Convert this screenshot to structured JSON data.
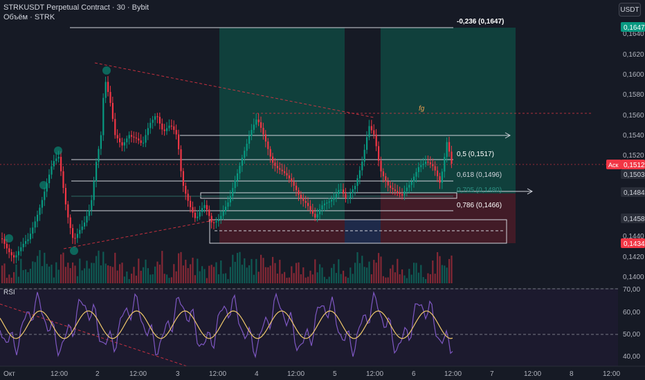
{
  "header": {
    "title": "STRKUSDT Perpetual Contract · 30 · Bybit",
    "volume_label": "Объём · STRK"
  },
  "currency_button": "USDT",
  "rsi_label": "RSI",
  "fib_labels": {
    "top": "-0,236 (0,1647)",
    "half": "0,5 (0,1517)",
    "f618": "0,618 (0,1496)",
    "f705": "0,705 (0,1480)",
    "f786": "0,786 (0,1466)"
  },
  "annotation_fg": "fg",
  "price_axis": [
    "0,1640",
    "0,1620",
    "0,1600",
    "0,1580",
    "0,1560",
    "0,1540",
    "0,1520",
    "0,1484",
    "0,1458",
    "0,1440",
    "0,1420",
    "0,1400"
  ],
  "price_badges": {
    "top": {
      "text": "0,1647",
      "color": "#089981"
    },
    "ask_label": "Аск",
    "ask": {
      "text": "0,1512",
      "color": "#f23645"
    },
    "p1503": {
      "text": "0,1503",
      "color": "#2a2e39"
    },
    "p1484": {
      "text": "0,1484",
      "color": "#2a2e39"
    },
    "p1458": {
      "text": "0,1458",
      "color": "#2a2e39"
    },
    "p1434": {
      "text": "0,1434",
      "color": "#f23645"
    }
  },
  "rsi_axis": [
    "70,00",
    "60,00",
    "50,00",
    "40,00"
  ],
  "time_axis": [
    "Окт",
    "12:00",
    "2",
    "12:00",
    "3",
    "12:00",
    "4",
    "12:00",
    "5",
    "12:00",
    "6",
    "12:00",
    "7",
    "12:00",
    "8",
    "12:00"
  ],
  "colors": {
    "up": "#089981",
    "down": "#f23645",
    "rsi": "#7e57c2",
    "rsi_ma": "#f0c96b"
  }
}
